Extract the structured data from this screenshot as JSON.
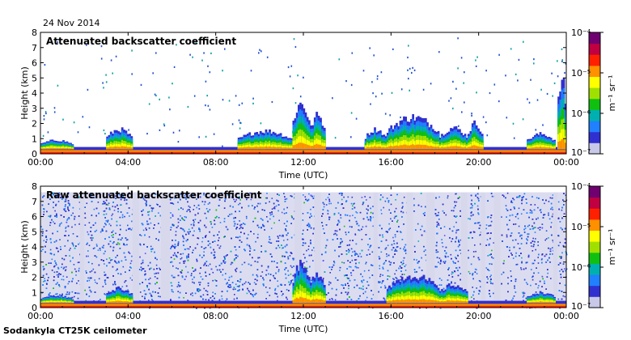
{
  "date": "24 Nov 2014",
  "footer": "Sodankyla CT25K ceilometer",
  "colorbar_colors": [
    "#c8c8e8",
    "#3030d0",
    "#2080ff",
    "#00b0b0",
    "#10c010",
    "#a0e000",
    "#ffff00",
    "#ff9000",
    "#ff2000",
    "#c00040",
    "#700070"
  ],
  "chart_data": [
    {
      "type": "heatmap",
      "title": "Attenuated backscatter coefficient",
      "xlabel": "Time (UTC)",
      "ylabel": "Height (km)",
      "xlim": [
        "00:00",
        "24:00"
      ],
      "ylim": [
        0,
        8
      ],
      "xticks": [
        "00:00",
        "04:00",
        "08:00",
        "12:00",
        "16:00",
        "20:00",
        "00:00"
      ],
      "yticks": [
        "0",
        "1",
        "2",
        "3",
        "4",
        "5",
        "6",
        "7",
        "8"
      ],
      "colorbar": {
        "label": "m⁻¹ sr⁻¹",
        "scale": "log",
        "range": [
          1e-07,
          0.0001
        ],
        "ticks": [
          "10⁻⁷",
          "10⁻⁶",
          "10⁻⁵",
          "10⁻⁴"
        ]
      },
      "noise_density": 0.0,
      "clouds": [
        {
          "t0": 0.0,
          "t1": 1.5,
          "h": 0.6
        },
        {
          "t0": 3.0,
          "t1": 4.2,
          "h": 1.3
        },
        {
          "t0": 9.0,
          "t1": 11.5,
          "h": 1.2
        },
        {
          "t0": 11.5,
          "t1": 12.3,
          "h": 3.0
        },
        {
          "t0": 12.3,
          "t1": 13.0,
          "h": 2.2
        },
        {
          "t0": 14.8,
          "t1": 15.8,
          "h": 1.3
        },
        {
          "t0": 15.8,
          "t1": 18.2,
          "h": 2.1
        },
        {
          "t0": 18.2,
          "t1": 19.5,
          "h": 1.4
        },
        {
          "t0": 19.5,
          "t1": 20.2,
          "h": 1.7
        },
        {
          "t0": 22.2,
          "t1": 23.5,
          "h": 1.0
        },
        {
          "t0": 23.6,
          "t1": 24.0,
          "h": 4.5
        }
      ],
      "gaps": []
    },
    {
      "type": "heatmap",
      "title": "Raw attenuated backscatter coefficient",
      "xlabel": "Time (UTC)",
      "ylabel": "Height (km)",
      "xlim": [
        "00:00",
        "24:00"
      ],
      "ylim": [
        0,
        8
      ],
      "xticks": [
        "00:00",
        "04:00",
        "08:00",
        "12:00",
        "16:00",
        "20:00",
        "00:00"
      ],
      "yticks": [
        "0",
        "1",
        "2",
        "3",
        "4",
        "5",
        "6",
        "7",
        "8"
      ],
      "colorbar": {
        "label": "m⁻¹ sr⁻¹",
        "scale": "log",
        "range": [
          1e-07,
          0.0001
        ],
        "ticks": [
          "10⁻⁷",
          "10⁻⁶",
          "10⁻⁵",
          "10⁻⁴"
        ]
      },
      "noise_density": 0.85,
      "clouds": [
        {
          "t0": 0.0,
          "t1": 1.5,
          "h": 0.5
        },
        {
          "t0": 3.0,
          "t1": 4.2,
          "h": 1.0
        },
        {
          "t0": 11.5,
          "t1": 12.3,
          "h": 2.5
        },
        {
          "t0": 12.3,
          "t1": 13.0,
          "h": 2.0
        },
        {
          "t0": 15.8,
          "t1": 18.2,
          "h": 1.8
        },
        {
          "t0": 18.2,
          "t1": 19.5,
          "h": 1.2
        },
        {
          "t0": 22.2,
          "t1": 23.5,
          "h": 0.7
        }
      ],
      "gaps": [
        [
          1.8,
          2.0
        ],
        [
          4.2,
          4.5
        ],
        [
          5.5,
          5.9
        ],
        [
          11.6,
          11.9
        ],
        [
          12.5,
          12.8
        ],
        [
          15.2,
          15.4
        ],
        [
          16.7,
          17.0
        ],
        [
          17.6,
          18.0
        ],
        [
          19.2,
          19.5
        ],
        [
          20.1,
          20.3
        ],
        [
          20.7,
          21.0
        ],
        [
          23.4,
          23.6
        ]
      ]
    }
  ]
}
